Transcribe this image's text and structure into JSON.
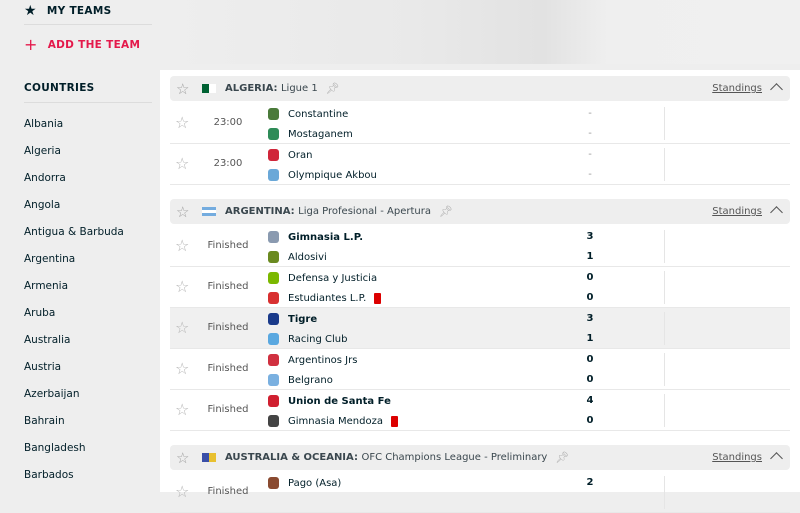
{
  "sidebar": {
    "my_teams": "MY TEAMS",
    "add_team": "ADD THE TEAM",
    "countries_title": "COUNTRIES",
    "countries": [
      "Albania",
      "Algeria",
      "Andorra",
      "Angola",
      "Antigua & Barbuda",
      "Argentina",
      "Armenia",
      "Aruba",
      "Australia",
      "Austria",
      "Azerbaijan",
      "Bahrain",
      "Bangladesh",
      "Barbados"
    ]
  },
  "leagues": [
    {
      "country": "ALGERIA:",
      "name": "Ligue 1",
      "standings": "Standings",
      "flag_colors": [
        "#006233",
        "#ffffff"
      ],
      "matches": [
        {
          "status": "23:00",
          "home": "Constantine",
          "away": "Mostaganem",
          "home_score": "-",
          "away_score": "-"
        },
        {
          "status": "23:00",
          "home": "Oran",
          "away": "Olympique Akbou",
          "home_score": "-",
          "away_score": "-"
        }
      ]
    },
    {
      "country": "ARGENTINA:",
      "name": "Liga Profesional - Apertura",
      "standings": "Standings",
      "flag_colors": [
        "#74acdf",
        "#ffffff"
      ],
      "matches": [
        {
          "status": "Finished",
          "home": "Gimnasia L.P.",
          "away": "Aldosivi",
          "home_score": "3",
          "away_score": "1",
          "winner": "home"
        },
        {
          "status": "Finished",
          "home": "Defensa y Justicia",
          "away": "Estudiantes L.P.",
          "home_score": "0",
          "away_score": "0",
          "away_red_cards": 1
        },
        {
          "status": "Finished",
          "home": "Tigre",
          "away": "Racing Club",
          "home_score": "3",
          "away_score": "1",
          "winner": "home",
          "hovered": true
        },
        {
          "status": "Finished",
          "home": "Argentinos Jrs",
          "away": "Belgrano",
          "home_score": "0",
          "away_score": "0"
        },
        {
          "status": "Finished",
          "home": "Union de Santa Fe",
          "away": "Gimnasia Mendoza",
          "home_score": "4",
          "away_score": "0",
          "winner": "home",
          "away_red_cards": 1
        }
      ]
    },
    {
      "country": "AUSTRALIA & OCEANIA:",
      "name": "OFC Champions League - Preliminary",
      "standings": "Standings",
      "flag_colors": [
        "#3a4fa8",
        "#e8c030"
      ],
      "matches": [
        {
          "status": "Finished",
          "home": "Pago (Asa)",
          "away": "",
          "home_score": "2",
          "away_score": ""
        }
      ]
    }
  ],
  "colors": {
    "accent": "#e4194b",
    "red_card": "#dc0000"
  }
}
